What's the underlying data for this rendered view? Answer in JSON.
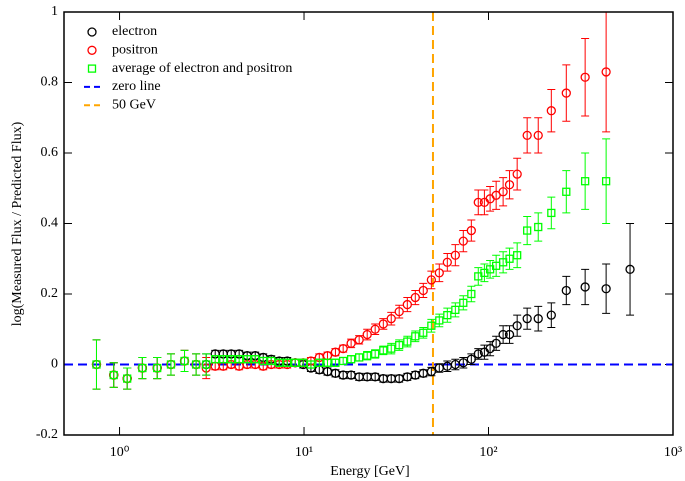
{
  "chart_data": {
    "type": "scatter",
    "xlabel": "Energy [GeV]",
    "ylabel": "log(Measured Flux / Predicted Flux)",
    "xscale": "log",
    "xlim": [
      0.5,
      1000
    ],
    "ylim": [
      -0.2,
      1
    ],
    "xticks": [
      {
        "value": 1,
        "label": "10⁰"
      },
      {
        "value": 10,
        "label": "10¹"
      },
      {
        "value": 100,
        "label": "10²"
      },
      {
        "value": 1000,
        "label": "10³"
      }
    ],
    "yticks": [
      -0.2,
      0,
      0.2,
      0.4,
      0.6,
      0.8,
      1
    ],
    "legend": "upper left",
    "x": [
      0.75,
      0.93,
      1.1,
      1.33,
      1.6,
      1.9,
      2.25,
      2.6,
      2.95,
      3.3,
      3.65,
      4.03,
      4.45,
      4.92,
      5.44,
      6.01,
      6.64,
      7.34,
      8.11,
      8.96,
      9.9,
      10.9,
      12.1,
      13.4,
      14.8,
      16.3,
      18.0,
      19.9,
      22.0,
      24.3,
      26.9,
      29.7,
      32.8,
      36.3,
      40.1,
      44.3,
      49.0,
      54.1,
      59.8,
      66.1,
      73.0,
      80.7,
      88,
      95,
      102,
      110,
      120,
      130,
      143,
      162,
      186,
      219,
      264,
      334,
      434,
      585
    ],
    "series": [
      {
        "name": "electron",
        "color": "#000000",
        "marker": "circle",
        "values": [
          0,
          -0.03,
          -0.04,
          -0.01,
          -0.01,
          0,
          0.01,
          0,
          0,
          0.03,
          0.03,
          0.03,
          0.03,
          0.025,
          0.025,
          0.02,
          0.015,
          0.01,
          0.01,
          0.005,
          0,
          -0.01,
          -0.015,
          -0.02,
          -0.025,
          -0.03,
          -0.03,
          -0.035,
          -0.035,
          -0.035,
          -0.04,
          -0.04,
          -0.04,
          -0.035,
          -0.03,
          -0.025,
          -0.02,
          -0.01,
          -0.005,
          0,
          0.005,
          0.015,
          0.03,
          0.035,
          0.045,
          0.06,
          0.085,
          0.085,
          0.11,
          0.13,
          0.13,
          0.14,
          0.21,
          0.22,
          0.215,
          0.27
        ],
        "errors": [
          0.07,
          0.035,
          0.03,
          0.03,
          0.03,
          0.03,
          0.03,
          0.03,
          0.03,
          0.01,
          0.01,
          0.01,
          0.01,
          0.01,
          0.01,
          0.01,
          0.01,
          0.01,
          0.01,
          0.01,
          0.01,
          0.01,
          0.01,
          0.01,
          0.01,
          0.01,
          0.01,
          0.01,
          0.01,
          0.01,
          0.01,
          0.01,
          0.01,
          0.01,
          0.01,
          0.01,
          0.012,
          0.012,
          0.015,
          0.015,
          0.015,
          0.015,
          0.015,
          0.02,
          0.02,
          0.02,
          0.025,
          0.025,
          0.03,
          0.03,
          0.035,
          0.035,
          0.04,
          0.05,
          0.07,
          0.13
        ]
      },
      {
        "name": "positron",
        "color": "#ff0000",
        "marker": "circle",
        "values": [
          0,
          -0.03,
          -0.04,
          -0.01,
          -0.01,
          0,
          0.01,
          0,
          -0.01,
          -0.005,
          -0.005,
          0,
          -0.005,
          0,
          0,
          -0.005,
          0,
          0,
          0,
          0.005,
          0.005,
          0.01,
          0.02,
          0.025,
          0.035,
          0.045,
          0.06,
          0.07,
          0.085,
          0.1,
          0.115,
          0.13,
          0.15,
          0.17,
          0.19,
          0.21,
          0.24,
          0.26,
          0.29,
          0.31,
          0.35,
          0.38,
          0.46,
          0.46,
          0.47,
          0.48,
          0.49,
          0.51,
          0.54,
          0.65,
          0.65,
          0.72,
          0.77,
          0.815,
          0.83,
          null
        ],
        "errors": [
          0.07,
          0.035,
          0.03,
          0.03,
          0.03,
          0.03,
          0.03,
          0.03,
          0.03,
          0.01,
          0.01,
          0.01,
          0.01,
          0.01,
          0.01,
          0.01,
          0.01,
          0.01,
          0.01,
          0.01,
          0.01,
          0.01,
          0.01,
          0.01,
          0.01,
          0.01,
          0.012,
          0.012,
          0.015,
          0.015,
          0.015,
          0.018,
          0.018,
          0.02,
          0.02,
          0.02,
          0.025,
          0.025,
          0.025,
          0.03,
          0.03,
          0.03,
          0.035,
          0.035,
          0.035,
          0.04,
          0.04,
          0.04,
          0.045,
          0.05,
          0.05,
          0.06,
          0.08,
          0.11,
          0.17,
          null
        ]
      },
      {
        "name": "average of electron and positron",
        "color": "#00ff00",
        "marker": "square",
        "values": [
          0,
          -0.03,
          -0.04,
          -0.01,
          -0.01,
          0,
          0.01,
          0,
          0,
          0.015,
          0.015,
          0.015,
          0.015,
          0.015,
          0.015,
          0.01,
          0.01,
          0.005,
          0.005,
          0.005,
          0.005,
          0,
          0.005,
          0.005,
          0.005,
          0.01,
          0.015,
          0.02,
          0.025,
          0.03,
          0.04,
          0.045,
          0.055,
          0.065,
          0.08,
          0.09,
          0.11,
          0.125,
          0.14,
          0.155,
          0.175,
          0.2,
          0.25,
          0.26,
          0.27,
          0.28,
          0.29,
          0.3,
          0.31,
          0.38,
          0.39,
          0.43,
          0.49,
          0.52,
          0.52,
          null
        ],
        "errors": [
          0.07,
          0.035,
          0.03,
          0.03,
          0.03,
          0.03,
          0.03,
          0.03,
          0.03,
          0.01,
          0.01,
          0.01,
          0.01,
          0.01,
          0.01,
          0.01,
          0.01,
          0.01,
          0.01,
          0.01,
          0.01,
          0.01,
          0.01,
          0.01,
          0.01,
          0.01,
          0.01,
          0.01,
          0.012,
          0.012,
          0.012,
          0.015,
          0.015,
          0.015,
          0.015,
          0.015,
          0.018,
          0.018,
          0.02,
          0.02,
          0.02,
          0.022,
          0.025,
          0.025,
          0.025,
          0.03,
          0.03,
          0.03,
          0.035,
          0.04,
          0.04,
          0.045,
          0.06,
          0.08,
          0.12,
          null
        ]
      }
    ],
    "reference_lines": [
      {
        "name": "zero line",
        "color": "#0000ff",
        "axis": "y",
        "value": 0
      },
      {
        "name": "50 GeV",
        "color": "#ffa500",
        "axis": "x",
        "value": 50
      }
    ]
  }
}
